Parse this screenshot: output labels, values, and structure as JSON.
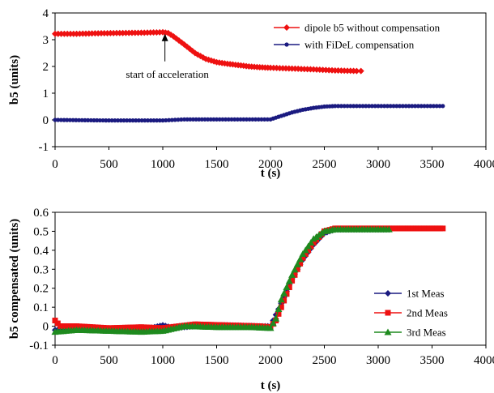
{
  "chart_data": [
    {
      "type": "line",
      "xlabel": "t (s)",
      "ylabel": "b5 (units)",
      "xlim": [
        0,
        4000
      ],
      "ylim": [
        -1,
        4
      ],
      "xticks": [
        "0",
        "500",
        "1000",
        "1500",
        "2000",
        "2500",
        "3000",
        "3500",
        "4000"
      ],
      "yticks": [
        "-1",
        "0",
        "1",
        "2",
        "3",
        "4"
      ],
      "grid": false,
      "legend_position": "top-right",
      "annotation": {
        "text": "start of acceleration",
        "x": 1020,
        "y": 3.28
      },
      "series": [
        {
          "name": "dipole b5 without compensation",
          "color": "#ee1111",
          "marker": "diamond",
          "points": [
            [
              0,
              3.22
            ],
            [
              200,
              3.22
            ],
            [
              400,
              3.24
            ],
            [
              600,
              3.25
            ],
            [
              800,
              3.26
            ],
            [
              1000,
              3.28
            ],
            [
              1050,
              3.25
            ],
            [
              1100,
              3.12
            ],
            [
              1200,
              2.82
            ],
            [
              1300,
              2.5
            ],
            [
              1400,
              2.28
            ],
            [
              1500,
              2.16
            ],
            [
              1600,
              2.1
            ],
            [
              1700,
              2.05
            ],
            [
              1800,
              2.0
            ],
            [
              1900,
              1.97
            ],
            [
              2000,
              1.95
            ],
            [
              2200,
              1.92
            ],
            [
              2400,
              1.89
            ],
            [
              2600,
              1.85
            ],
            [
              2800,
              1.83
            ],
            [
              2840,
              1.83
            ]
          ]
        },
        {
          "name": "with FiDeL compensation",
          "color": "#1a1a80",
          "marker": "circle",
          "points": [
            [
              0,
              0.0
            ],
            [
              500,
              -0.02
            ],
            [
              1000,
              -0.02
            ],
            [
              1200,
              0.02
            ],
            [
              1500,
              0.02
            ],
            [
              2000,
              0.02
            ],
            [
              2100,
              0.15
            ],
            [
              2200,
              0.28
            ],
            [
              2300,
              0.38
            ],
            [
              2400,
              0.45
            ],
            [
              2500,
              0.5
            ],
            [
              2600,
              0.52
            ],
            [
              3000,
              0.52
            ],
            [
              3600,
              0.52
            ]
          ]
        }
      ]
    },
    {
      "type": "line",
      "xlabel": "t (s)",
      "ylabel": "b5 compensated (units)",
      "xlim": [
        0,
        4000
      ],
      "ylim": [
        -0.1,
        0.6
      ],
      "xticks": [
        "0",
        "500",
        "1000",
        "1500",
        "2000",
        "2500",
        "3000",
        "3500",
        "4000"
      ],
      "yticks": [
        "-0.1",
        "0",
        "0.1",
        "0.2",
        "0.3",
        "0.4",
        "0.5",
        "0.6"
      ],
      "grid": false,
      "legend_position": "bottom-right",
      "series": [
        {
          "name": "1st Meas",
          "color": "#1a1a80",
          "marker": "diamond",
          "points": [
            [
              0,
              -0.02
            ],
            [
              200,
              -0.01
            ],
            [
              500,
              -0.015
            ],
            [
              800,
              -0.02
            ],
            [
              1000,
              0.005
            ],
            [
              1100,
              -0.01
            ],
            [
              1300,
              0.0
            ],
            [
              1600,
              0.005
            ],
            [
              1900,
              0.0
            ],
            [
              2000,
              0.0
            ],
            [
              2100,
              0.12
            ],
            [
              2200,
              0.25
            ],
            [
              2300,
              0.35
            ],
            [
              2400,
              0.43
            ],
            [
              2500,
              0.49
            ],
            [
              2600,
              0.51
            ],
            [
              2800,
              0.51
            ],
            [
              3000,
              0.51
            ],
            [
              3100,
              0.51
            ]
          ]
        },
        {
          "name": "2nd Meas",
          "color": "#ee1111",
          "marker": "square",
          "points": [
            [
              0,
              0.03
            ],
            [
              50,
              0.0
            ],
            [
              200,
              0.0
            ],
            [
              500,
              -0.01
            ],
            [
              800,
              -0.005
            ],
            [
              1000,
              -0.01
            ],
            [
              1300,
              0.01
            ],
            [
              1600,
              0.005
            ],
            [
              1900,
              0.0
            ],
            [
              2000,
              -0.005
            ],
            [
              2050,
              0.03
            ],
            [
              2100,
              0.1
            ],
            [
              2200,
              0.24
            ],
            [
              2300,
              0.36
            ],
            [
              2400,
              0.44
            ],
            [
              2500,
              0.5
            ],
            [
              2600,
              0.515
            ],
            [
              2800,
              0.515
            ],
            [
              3000,
              0.515
            ],
            [
              3300,
              0.515
            ],
            [
              3600,
              0.515
            ]
          ]
        },
        {
          "name": "3rd Meas",
          "color": "#1e8a1e",
          "marker": "triangle",
          "points": [
            [
              0,
              -0.03
            ],
            [
              200,
              -0.02
            ],
            [
              500,
              -0.025
            ],
            [
              800,
              -0.03
            ],
            [
              1000,
              -0.025
            ],
            [
              1200,
              0.0
            ],
            [
              1500,
              -0.005
            ],
            [
              1800,
              -0.005
            ],
            [
              2000,
              -0.01
            ],
            [
              2050,
              0.04
            ],
            [
              2100,
              0.14
            ],
            [
              2200,
              0.27
            ],
            [
              2300,
              0.38
            ],
            [
              2400,
              0.46
            ],
            [
              2500,
              0.5
            ],
            [
              2600,
              0.51
            ],
            [
              2800,
              0.51
            ],
            [
              3000,
              0.51
            ],
            [
              3100,
              0.51
            ]
          ]
        }
      ]
    }
  ]
}
